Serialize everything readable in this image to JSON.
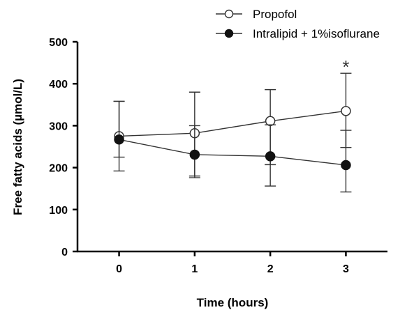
{
  "chart_data": {
    "type": "line",
    "xlabel": "Time (hours)",
    "ylabel": "Free fatty acids (µmol/L)",
    "x": [
      0,
      1,
      2,
      3
    ],
    "x_tick_labels": [
      "0",
      "1",
      "2",
      "3"
    ],
    "xlim": [
      -0.55,
      3.55
    ],
    "ylim": [
      0,
      500
    ],
    "y_ticks": [
      0,
      100,
      200,
      300,
      400,
      500
    ],
    "y_tick_labels": [
      "0",
      "100",
      "200",
      "300",
      "400",
      "500"
    ],
    "grid": false,
    "legend_position": "top-right",
    "series": [
      {
        "name": "Propofol",
        "marker": "open-circle",
        "color": "#333333",
        "values": [
          275,
          282,
          311,
          335
        ],
        "error_upper": [
          358,
          380,
          386,
          425
        ],
        "error_lower": [
          192,
          180,
          207,
          248
        ]
      },
      {
        "name": "Intralipid + 1%isoflurane",
        "marker": "filled-circle",
        "color": "#111111",
        "values": [
          267,
          231,
          227,
          206
        ],
        "error_upper": [
          358,
          300,
          302,
          289
        ],
        "error_lower": [
          225,
          176,
          156,
          142
        ]
      }
    ],
    "annotations": [
      {
        "text": "*",
        "x": 3,
        "y": 455
      }
    ]
  }
}
